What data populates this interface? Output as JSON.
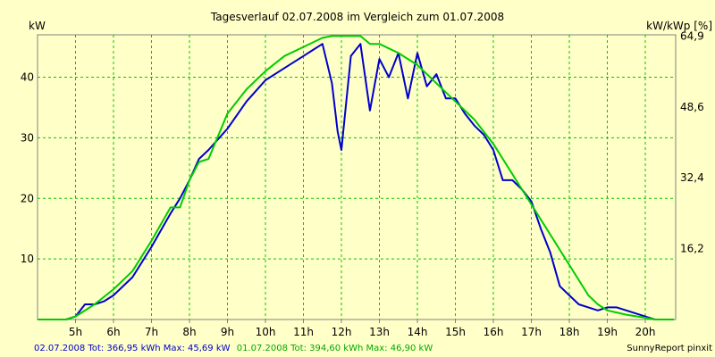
{
  "chart_data": {
    "type": "line",
    "title": "Tagesverlauf 02.07.2008 im Vergleich zum 01.07.2008",
    "ylabel_left": "kW",
    "ylabel_right": "kW/kWp [%]",
    "grid": true,
    "legend_placement": "bottom-left",
    "xlim": [
      4.0,
      20.8
    ],
    "ylim": [
      0,
      47
    ],
    "x_ticks": [
      5,
      6,
      7,
      8,
      9,
      10,
      11,
      12,
      13,
      14,
      15,
      16,
      17,
      18,
      19,
      20
    ],
    "x_tick_labels": [
      "5h",
      "6h",
      "7h",
      "8h",
      "9h",
      "10h",
      "11h",
      "12h",
      "13h",
      "14h",
      "15h",
      "16h",
      "17h",
      "18h",
      "19h",
      "20h"
    ],
    "y_ticks_left": [
      10,
      20,
      30,
      40
    ],
    "y_tick_labels_left": [
      "10",
      "20",
      "30",
      "40"
    ],
    "y_ticks_right_pos": [
      11.7,
      23.4,
      35.1,
      46.8
    ],
    "y_tick_labels_right": [
      "16,2",
      "32,4",
      "48,6",
      "64,9"
    ],
    "series": [
      {
        "name": "02.07.2008",
        "color": "#0000cc",
        "x": [
          4.0,
          4.5,
          4.75,
          5.0,
          5.25,
          5.5,
          5.75,
          6.0,
          6.5,
          7.0,
          7.5,
          7.75,
          8.0,
          8.25,
          8.5,
          9.0,
          9.5,
          10.0,
          10.5,
          11.0,
          11.25,
          11.5,
          11.75,
          11.9,
          12.0,
          12.25,
          12.5,
          12.75,
          13.0,
          13.25,
          13.5,
          13.75,
          14.0,
          14.25,
          14.5,
          14.75,
          15.0,
          15.25,
          15.5,
          15.75,
          16.0,
          16.25,
          16.5,
          16.75,
          17.0,
          17.25,
          17.5,
          17.75,
          18.0,
          18.25,
          18.5,
          18.75,
          19.0,
          19.25,
          19.5,
          19.75,
          20.0,
          20.25,
          20.5,
          20.75
        ],
        "y": [
          0,
          0,
          0,
          0.5,
          2.5,
          2.5,
          3,
          4,
          7,
          12,
          17.5,
          20,
          23,
          26.5,
          28,
          31.5,
          36,
          39.5,
          41.5,
          43.5,
          44.5,
          45.5,
          39,
          31,
          28,
          43.5,
          45.5,
          34.5,
          43,
          40,
          44,
          36.5,
          44,
          38.5,
          40.5,
          36.5,
          36.5,
          34,
          32,
          30.5,
          28,
          23,
          23,
          21.5,
          19.5,
          15,
          11,
          5.5,
          4,
          2.5,
          2,
          1.5,
          2,
          2,
          1.5,
          1,
          0.5,
          0,
          0,
          0
        ]
      },
      {
        "name": "01.07.2008",
        "color": "#00cc00",
        "x": [
          4.0,
          4.5,
          4.75,
          5.0,
          5.5,
          6.0,
          6.5,
          7.0,
          7.5,
          7.75,
          8.0,
          8.25,
          8.5,
          9.0,
          9.5,
          10.0,
          10.5,
          11.0,
          11.5,
          11.75,
          12.0,
          12.5,
          12.75,
          13.0,
          13.5,
          14.0,
          14.5,
          15.0,
          15.5,
          16.0,
          16.5,
          17.0,
          17.5,
          18.0,
          18.5,
          18.75,
          19.0,
          19.5,
          20.0,
          20.25,
          20.5,
          20.75
        ],
        "y": [
          0,
          0,
          0,
          0.5,
          2.5,
          5,
          8,
          13,
          18.5,
          18.5,
          23,
          26,
          26.5,
          34,
          38,
          41,
          43.5,
          45,
          46.5,
          46.8,
          46.8,
          46.8,
          45.5,
          45.5,
          44,
          42,
          39,
          36,
          33,
          29,
          24,
          19,
          14,
          9,
          4,
          2.5,
          1.5,
          0.8,
          0.3,
          0,
          0,
          0
        ]
      }
    ],
    "legend_text_1": "02.07.2008 Tot: 366,95 kWh Max: 45,69 kW",
    "legend_text_2": "01.07.2008 Tot: 394,60 kWh Max: 46,90 kW",
    "credit": "SunnyReport pinxit"
  }
}
